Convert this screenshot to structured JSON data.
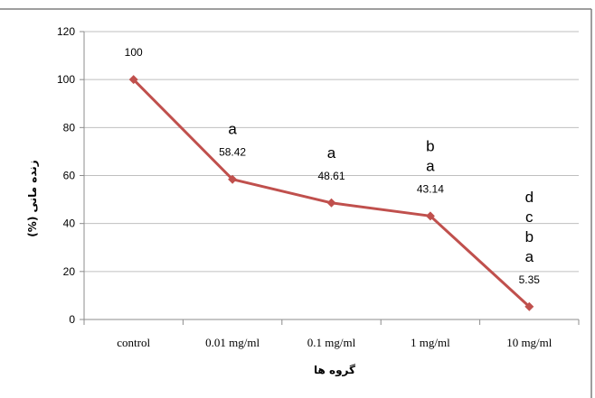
{
  "chart_data": {
    "type": "line",
    "categories": [
      "control",
      "0.01 mg/ml",
      "0.1 mg/ml",
      "1 mg/ml",
      "10 mg/ml"
    ],
    "series": [
      {
        "values": [
          100,
          58.42,
          48.61,
          43.14,
          5.35
        ],
        "color": "#c0504d"
      }
    ],
    "data_labels": [
      "100",
      "58.42",
      "48.61",
      "43.14",
      "5.35"
    ],
    "significance_letters": [
      [],
      [
        "a"
      ],
      [
        "a"
      ],
      [
        "b",
        "a"
      ],
      [
        "d",
        "c",
        "b",
        "a"
      ]
    ],
    "y_ticks": [
      "0",
      "20",
      "40",
      "60",
      "80",
      "100",
      "120"
    ],
    "ylim": [
      0,
      120
    ],
    "ylabel": "(%) زنده مانی",
    "xlabel": "گروه ها",
    "grid": true,
    "legend": "none",
    "marker": "diamond"
  }
}
